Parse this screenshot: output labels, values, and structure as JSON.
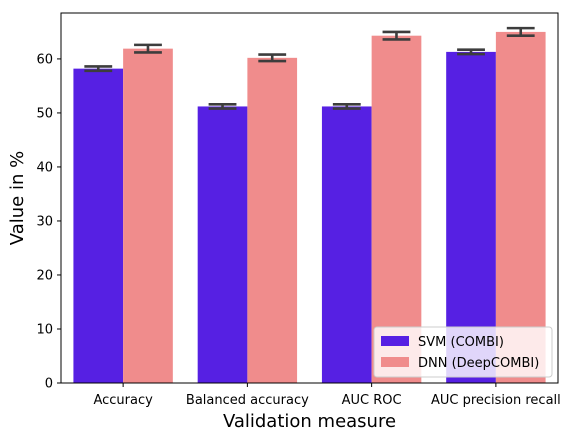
{
  "chart_data": {
    "type": "bar",
    "title": "",
    "xlabel": "Validation measure",
    "ylabel": "Value in %",
    "ylim": [
      0,
      68.5
    ],
    "yticks": [
      0,
      10,
      20,
      30,
      40,
      50,
      60
    ],
    "grid": false,
    "categories": [
      "Accuracy",
      "Balanced accuracy",
      "AUC ROC",
      "AUC precision recall"
    ],
    "series": [
      {
        "name": "SVM (COMBI)",
        "color": "#5620e3",
        "values": [
          58.2,
          51.2,
          51.2,
          61.3
        ],
        "error": [
          0.4,
          0.4,
          0.4,
          0.4
        ]
      },
      {
        "name": "DNN (DeepCOMBI)",
        "color": "#f08c8c",
        "values": [
          61.9,
          60.2,
          64.3,
          65.0
        ],
        "error": [
          0.7,
          0.6,
          0.7,
          0.7
        ]
      }
    ],
    "error_bar_color": "#3d3d3d",
    "legend_position": "lower right"
  }
}
